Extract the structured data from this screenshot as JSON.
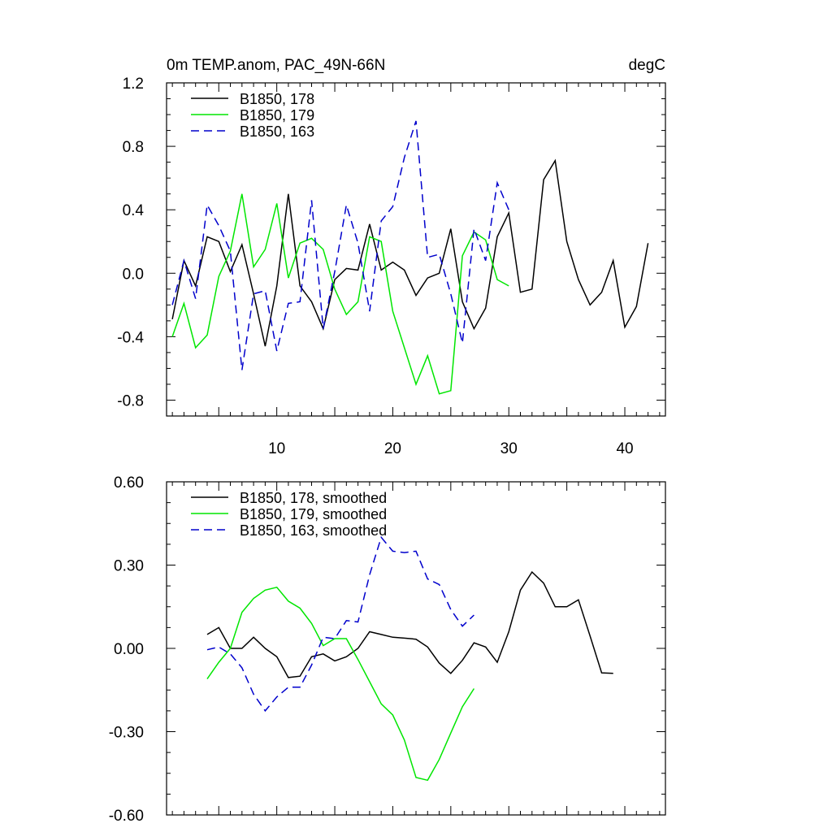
{
  "chart_data": [
    {
      "type": "line",
      "title": "0m TEMP.anom, PAC_49N-66N",
      "units_label": "degC",
      "xlim": [
        0.5,
        43.5
      ],
      "ylim": [
        -0.9,
        1.2
      ],
      "x_tick_labels": [
        {
          "value": 10,
          "label": "10"
        },
        {
          "value": 20,
          "label": "20"
        },
        {
          "value": 30,
          "label": "30"
        },
        {
          "value": 40,
          "label": "40"
        }
      ],
      "y_tick_labels": [
        {
          "value": 1.2,
          "label": "1.2"
        },
        {
          "value": 0.8,
          "label": "0.8"
        },
        {
          "value": 0.4,
          "label": "0.4"
        },
        {
          "value": 0.0,
          "label": "0.0"
        },
        {
          "value": -0.4,
          "label": "-0.4"
        },
        {
          "value": -0.8,
          "label": "-0.8"
        }
      ],
      "legend_placement": "top-left",
      "series": [
        {
          "name": "B1850, 178",
          "color": "#000000",
          "dash": "solid",
          "x": [
            1,
            2,
            3,
            4,
            5,
            6,
            7,
            8,
            9,
            10,
            11,
            12,
            13,
            14,
            15,
            16,
            17,
            18,
            19,
            20,
            21,
            22,
            23,
            24,
            25,
            26,
            27,
            28,
            29,
            30,
            31,
            32,
            33,
            34,
            35,
            36,
            37,
            38,
            39,
            40,
            41,
            42
          ],
          "values": [
            -0.29,
            0.08,
            -0.08,
            0.23,
            0.2,
            0.01,
            0.18,
            -0.13,
            -0.46,
            -0.08,
            0.5,
            -0.08,
            -0.18,
            -0.35,
            -0.04,
            0.03,
            0.02,
            0.31,
            0.02,
            0.07,
            0.02,
            -0.14,
            -0.03,
            0.0,
            0.28,
            -0.18,
            -0.35,
            -0.22,
            0.23,
            0.38,
            -0.12,
            -0.1,
            0.59,
            0.71,
            0.2,
            -0.04,
            -0.2,
            -0.12,
            0.08,
            -0.34,
            -0.21,
            0.19
          ]
        },
        {
          "name": "B1850, 179",
          "color": "#00e600",
          "dash": "solid",
          "x": [
            1,
            2,
            3,
            4,
            5,
            6,
            7,
            8,
            9,
            10,
            11,
            12,
            13,
            14,
            15,
            16,
            17,
            18,
            19,
            20,
            21,
            22,
            23,
            24,
            25,
            26,
            27,
            28,
            29,
            30
          ],
          "values": [
            -0.4,
            -0.19,
            -0.47,
            -0.39,
            -0.02,
            0.14,
            0.5,
            0.04,
            0.15,
            0.44,
            -0.03,
            0.19,
            0.22,
            0.15,
            -0.1,
            -0.26,
            -0.18,
            0.23,
            0.2,
            -0.24,
            -0.47,
            -0.7,
            -0.52,
            -0.76,
            -0.74,
            0.11,
            0.26,
            0.21,
            -0.04,
            -0.08
          ]
        },
        {
          "name": "B1850, 163",
          "color": "#0000cc",
          "dash": "dashed",
          "x": [
            1,
            2,
            3,
            4,
            5,
            6,
            7,
            8,
            9,
            10,
            11,
            12,
            13,
            14,
            15,
            16,
            17,
            18,
            19,
            20,
            21,
            22,
            23,
            24,
            25,
            26,
            27,
            28,
            29,
            30
          ],
          "values": [
            -0.2,
            0.08,
            -0.16,
            0.43,
            0.3,
            0.14,
            -0.61,
            -0.13,
            -0.11,
            -0.49,
            -0.19,
            -0.18,
            0.46,
            -0.35,
            0.01,
            0.43,
            0.19,
            -0.24,
            0.33,
            0.42,
            0.73,
            0.96,
            0.1,
            0.12,
            -0.13,
            -0.44,
            0.28,
            0.08,
            0.57,
            0.4
          ]
        }
      ]
    },
    {
      "type": "line",
      "xlim": [
        0.5,
        43.5
      ],
      "ylim": [
        -0.6,
        0.6
      ],
      "y_tick_labels": [
        {
          "value": 0.6,
          "label": "0.60"
        },
        {
          "value": 0.3,
          "label": "0.30"
        },
        {
          "value": 0.0,
          "label": "0.00"
        },
        {
          "value": -0.3,
          "label": "-0.30"
        },
        {
          "value": -0.6,
          "label": "-0.60"
        }
      ],
      "legend_placement": "top-left",
      "series": [
        {
          "name": "B1850, 178, smoothed",
          "color": "#000000",
          "dash": "solid",
          "x": [
            4,
            5,
            6,
            7,
            8,
            9,
            10,
            11,
            12,
            13,
            14,
            15,
            16,
            17,
            18,
            19,
            20,
            21,
            22,
            23,
            24,
            25,
            26,
            27,
            28,
            29,
            30,
            31,
            32,
            33,
            34,
            35,
            36,
            37,
            38,
            39
          ],
          "values": [
            0.05,
            0.075,
            0.0,
            0.0,
            0.04,
            0.0,
            -0.03,
            -0.105,
            -0.1,
            -0.03,
            -0.02,
            -0.045,
            -0.03,
            0.0,
            0.06,
            0.05,
            0.04,
            0.037,
            0.033,
            0.005,
            -0.053,
            -0.09,
            -0.043,
            0.02,
            0.005,
            -0.05,
            0.06,
            0.21,
            0.275,
            0.235,
            0.15,
            0.15,
            0.175,
            0.045,
            -0.088,
            -0.09
          ]
        },
        {
          "name": "B1850, 179, smoothed",
          "color": "#00e600",
          "dash": "solid",
          "x": [
            4,
            5,
            6,
            7,
            8,
            9,
            10,
            11,
            12,
            13,
            14,
            15,
            16,
            17,
            18,
            19,
            20,
            21,
            22,
            23,
            24,
            25,
            26,
            27
          ],
          "values": [
            -0.11,
            -0.05,
            0.0,
            0.13,
            0.18,
            0.21,
            0.22,
            0.17,
            0.145,
            0.09,
            0.01,
            0.035,
            0.035,
            -0.04,
            -0.12,
            -0.2,
            -0.24,
            -0.33,
            -0.465,
            -0.475,
            -0.4,
            -0.305,
            -0.21,
            -0.145
          ]
        },
        {
          "name": "B1850, 163, smoothed",
          "color": "#0000cc",
          "dash": "dashed",
          "x": [
            4,
            5,
            6,
            7,
            8,
            9,
            10,
            11,
            12,
            13,
            14,
            15,
            16,
            17,
            18,
            19,
            20,
            21,
            22,
            23,
            24,
            25,
            26,
            27
          ],
          "values": [
            -0.005,
            0.005,
            -0.02,
            -0.07,
            -0.165,
            -0.225,
            -0.175,
            -0.14,
            -0.14,
            -0.06,
            0.04,
            0.035,
            0.1,
            0.095,
            0.265,
            0.4,
            0.35,
            0.345,
            0.35,
            0.25,
            0.23,
            0.14,
            0.08,
            0.12
          ]
        }
      ]
    }
  ]
}
